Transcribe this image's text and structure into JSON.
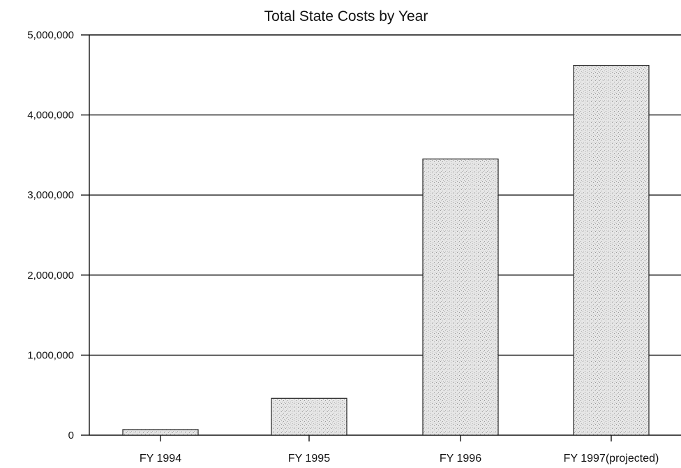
{
  "chart_data": {
    "type": "bar",
    "title": "Total State Costs by Year",
    "xlabel": "",
    "ylabel": "",
    "categories": [
      "FY 1994",
      "FY 1995",
      "FY 1996",
      "FY 1997(projected)"
    ],
    "values": [
      70000,
      460000,
      3450000,
      4620000
    ],
    "ylim": [
      0,
      5000000
    ],
    "yticks": [
      0,
      1000000,
      2000000,
      3000000,
      4000000,
      5000000
    ],
    "ytick_labels": [
      "0",
      "1,000,000",
      "2,000,000",
      "3,000,000",
      "4,000,000",
      "5,000,000"
    ],
    "grid": "horizontal",
    "legend": "none",
    "colors": {
      "bar_fill": "#e6e6e6",
      "bar_stipple": "#9a9a9a",
      "bar_stroke": "#222222",
      "gridline": "#111111"
    }
  }
}
